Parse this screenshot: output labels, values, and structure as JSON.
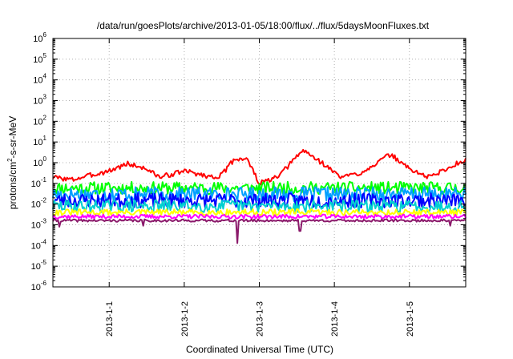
{
  "chart_data": {
    "type": "line",
    "title": "/data/run/goesPlots/archive/2013-01-05/18:00/flux/../flux/5daysMoonFluxes.txt",
    "xlabel": "Coordinated Universal Time (UTC)",
    "ylabel": {
      "prefix": "protons/cm",
      "sup": "2",
      "suffix": "-s-sr-MeV"
    },
    "y_scale": "log",
    "ylim": [
      1e-06,
      1000000.0
    ],
    "y_tick_labels": [
      {
        "base": "10",
        "exp": "-6"
      },
      {
        "base": "10",
        "exp": "-5"
      },
      {
        "base": "10",
        "exp": "-4"
      },
      {
        "base": "10",
        "exp": "-3"
      },
      {
        "base": "10",
        "exp": "-2"
      },
      {
        "base": "10",
        "exp": "-1"
      },
      {
        "base": "10",
        "exp": "0"
      },
      {
        "base": "10",
        "exp": "1"
      },
      {
        "base": "10",
        "exp": "2"
      },
      {
        "base": "10",
        "exp": "3"
      },
      {
        "base": "10",
        "exp": "4"
      },
      {
        "base": "10",
        "exp": "5"
      },
      {
        "base": "10",
        "exp": "6"
      }
    ],
    "x_range": [
      "2012-12-31T06:00",
      "2013-01-05T18:00"
    ],
    "x_ticks": [
      {
        "date": "2013-01-01T00:00",
        "label": "2013-1-1"
      },
      {
        "date": "2013-01-02T00:00",
        "label": "2013-1-2"
      },
      {
        "date": "2013-01-03T00:00",
        "label": "2013-1-3"
      },
      {
        "date": "2013-01-04T00:00",
        "label": "2013-1-4"
      },
      {
        "date": "2013-01-05T00:00",
        "label": "2013-1-5"
      }
    ],
    "grid": true,
    "series": [
      {
        "color": "#ff0000",
        "base": 0.8,
        "noise": 0.12,
        "seed": 3,
        "keypoints": [
          [
            "2012-12-31T06:00",
            0.2
          ],
          [
            "2012-12-31T12:00",
            0.15
          ],
          [
            "2013-01-01T00:00",
            0.4
          ],
          [
            "2013-01-01T06:00",
            0.9
          ],
          [
            "2013-01-01T12:00",
            0.5
          ],
          [
            "2013-01-01T16:00",
            0.2
          ],
          [
            "2013-01-01T21:00",
            0.3
          ],
          [
            "2013-01-02T00:00",
            0.4
          ],
          [
            "2013-01-02T09:00",
            0.2
          ],
          [
            "2013-01-02T12:00",
            0.25
          ],
          [
            "2013-01-02T16:00",
            1.5
          ],
          [
            "2013-01-02T20:00",
            1.6
          ],
          [
            "2013-01-03T00:00",
            0.1
          ],
          [
            "2013-01-03T06:00",
            0.2
          ],
          [
            "2013-01-03T12:00",
            2.0
          ],
          [
            "2013-01-03T14:00",
            4.0
          ],
          [
            "2013-01-03T20:00",
            1.0
          ],
          [
            "2013-01-04T02:00",
            0.2
          ],
          [
            "2013-01-04T08:00",
            0.3
          ],
          [
            "2013-01-04T18:00",
            2.5
          ],
          [
            "2013-01-05T00:00",
            0.5
          ],
          [
            "2013-01-05T06:00",
            0.2
          ],
          [
            "2013-01-05T12:00",
            0.5
          ],
          [
            "2013-01-05T18:00",
            1.5
          ]
        ]
      },
      {
        "color": "#00ff00",
        "base": 0.06,
        "noise": 0.3,
        "seed": 11
      },
      {
        "color": "#00a0ff",
        "base": 0.03,
        "noise": 0.35,
        "seed": 17
      },
      {
        "color": "#0000ff",
        "base": 0.015,
        "noise": 0.35,
        "seed": 23
      },
      {
        "color": "#00d0d0",
        "base": 0.008,
        "noise": 0.3,
        "seed": 29
      },
      {
        "color": "#ffff00",
        "base": 0.004,
        "noise": 0.15,
        "seed": 31
      },
      {
        "color": "#ff00ff",
        "base": 0.0025,
        "noise": 0.1,
        "seed": 37
      },
      {
        "color": "#8b1a6b",
        "base": 0.0016,
        "noise": 0.06,
        "seed": 41,
        "dips": [
          [
            "2012-12-31T08:00",
            0.0008
          ],
          [
            "2013-01-01T11:00",
            0.0009
          ],
          [
            "2013-01-02T17:00",
            0.00013
          ],
          [
            "2013-01-03T13:00",
            0.0005
          ],
          [
            "2013-01-05T13:00",
            0.0009
          ]
        ]
      }
    ]
  }
}
